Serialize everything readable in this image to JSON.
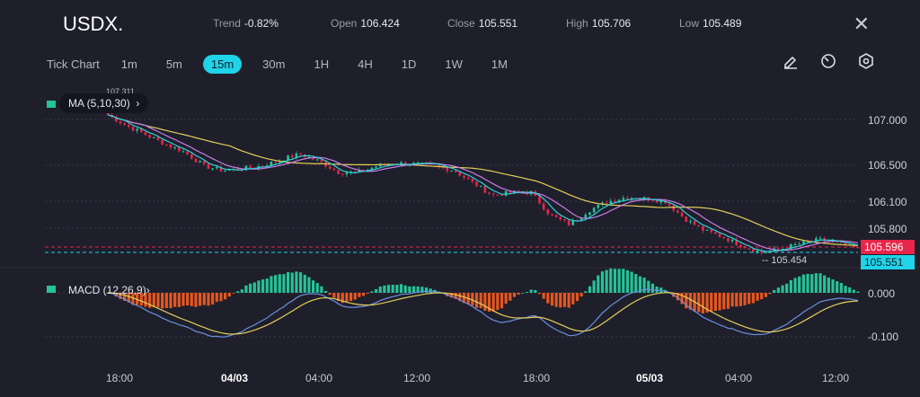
{
  "header": {
    "symbol": "USDX.",
    "trend_label": "Trend",
    "trend": "-0.82%",
    "open_label": "Open",
    "open": "106.424",
    "close_label": "Close",
    "close": "105.551",
    "high_label": "High",
    "high": "105.706",
    "low_label": "Low",
    "low": "105.489"
  },
  "timeframes": [
    "Tick Chart",
    "1m",
    "5m",
    "15m",
    "30m",
    "1H",
    "4H",
    "1D",
    "1W",
    "1M"
  ],
  "active_timeframe": "15m",
  "indicators": {
    "ma": "MA (5,10,30)",
    "macd": "MACD (12,26,9)"
  },
  "price_axis": [
    "107.000",
    "106.500",
    "106.100",
    "105.800"
  ],
  "macd_axis": [
    "0.000",
    "-0.100"
  ],
  "tags": {
    "prev": "105.596",
    "last": "105.551",
    "low_marker": "105.454",
    "high_marker": "107.311"
  },
  "x_labels": [
    {
      "t": "18:00",
      "bold": false
    },
    {
      "t": "04/03",
      "bold": true
    },
    {
      "t": "04:00",
      "bold": false
    },
    {
      "t": "12:00",
      "bold": false
    },
    {
      "t": "18:00",
      "bold": false
    },
    {
      "t": "05/03",
      "bold": true
    },
    {
      "t": "04:00",
      "bold": false
    },
    {
      "t": "12:00",
      "bold": false
    }
  ],
  "colors": {
    "up": "#26c39a",
    "down": "#e8264a",
    "ma5": "#2fd0d8",
    "ma10": "#c77ee8",
    "ma30": "#e3cf5a",
    "macd": "#6b8fe0",
    "signal": "#e3cf5a",
    "hist_pos": "#26c39a",
    "hist_neg": "#e8561e",
    "accent": "#1fd3e8"
  },
  "chart_data": {
    "type": "candlestick",
    "close_anchors": [
      107.05,
      106.93,
      106.83,
      106.73,
      106.64,
      106.49,
      106.44,
      106.46,
      106.49,
      106.56,
      106.62,
      106.54,
      106.42,
      106.42,
      106.49,
      106.52,
      106.51,
      106.49,
      106.44,
      106.3,
      106.17,
      106.2,
      106.2,
      105.95,
      105.85,
      106.0,
      106.1,
      106.15,
      106.13,
      106.1,
      105.91,
      105.78,
      105.71,
      105.61,
      105.54,
      105.58,
      105.64,
      105.68,
      105.64,
      105.58
    ],
    "ma_periods": [
      5,
      10,
      30
    ],
    "macd_params": [
      12,
      26,
      9
    ],
    "ylim_price": [
      105.4,
      107.1
    ],
    "ylim_macd": [
      -0.15,
      0.03
    ]
  }
}
